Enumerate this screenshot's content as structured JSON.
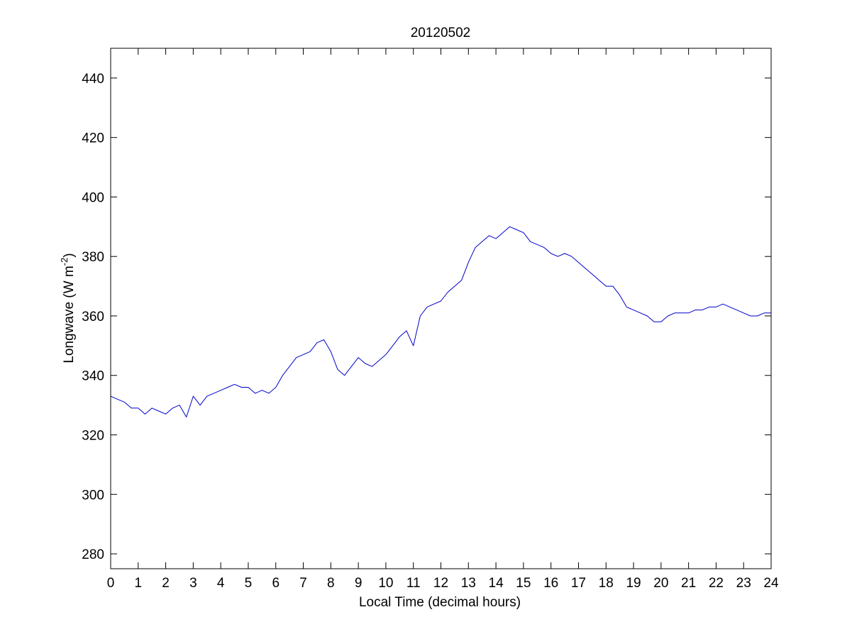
{
  "chart_data": {
    "type": "line",
    "title": "20120502",
    "xlabel": "Local Time (decimal hours)",
    "ylabel": "Longwave (W m",
    "ylabel_sup": "-2",
    "ylabel_end": ")",
    "xlim": [
      0,
      24
    ],
    "ylim": [
      275,
      450
    ],
    "xticks": [
      0,
      1,
      2,
      3,
      4,
      5,
      6,
      7,
      8,
      9,
      10,
      11,
      12,
      13,
      14,
      15,
      16,
      17,
      18,
      19,
      20,
      21,
      22,
      23,
      24
    ],
    "yticks": [
      280,
      300,
      320,
      340,
      360,
      380,
      400,
      420,
      440
    ],
    "grid": false,
    "line_color": "#0000cc",
    "series": [
      {
        "x": [
          0.0,
          0.25,
          0.5,
          0.75,
          1.0,
          1.25,
          1.5,
          1.75,
          2.0,
          2.25,
          2.5,
          2.75,
          3.0,
          3.25,
          3.5,
          3.75,
          4.0,
          4.25,
          4.5,
          4.75,
          5.0,
          5.25,
          5.5,
          5.75,
          6.0,
          6.25,
          6.5,
          6.75,
          7.0,
          7.25,
          7.5,
          7.75,
          8.0,
          8.25,
          8.5,
          8.75,
          9.0,
          9.25,
          9.5,
          9.75,
          10.0,
          10.25,
          10.5,
          10.75,
          11.0,
          11.25,
          11.5,
          11.75,
          12.0,
          12.25,
          12.5,
          12.75,
          13.0,
          13.25,
          13.5,
          13.75,
          14.0,
          14.25,
          14.5,
          14.75,
          15.0,
          15.25,
          15.5,
          15.75,
          16.0,
          16.25,
          16.5,
          16.75,
          17.0,
          17.25,
          17.5,
          17.75,
          18.0,
          18.25,
          18.5,
          18.75,
          19.0,
          19.25,
          19.5,
          19.75,
          20.0,
          20.25,
          20.5,
          20.75,
          21.0,
          21.25,
          21.5,
          21.75,
          22.0,
          22.25,
          22.5,
          22.75,
          23.0,
          23.25,
          23.5,
          23.75,
          24.0
        ],
        "y": [
          333,
          332,
          331,
          329,
          329,
          327,
          329,
          328,
          327,
          329,
          330,
          326,
          333,
          330,
          333,
          334,
          335,
          336,
          337,
          336,
          336,
          334,
          335,
          334,
          336,
          340,
          343,
          346,
          347,
          348,
          351,
          352,
          348,
          342,
          340,
          343,
          346,
          344,
          343,
          345,
          347,
          350,
          353,
          355,
          350,
          360,
          363,
          364,
          365,
          368,
          370,
          372,
          378,
          383,
          385,
          387,
          386,
          388,
          390,
          389,
          388,
          385,
          384,
          383,
          381,
          380,
          381,
          380,
          378,
          376,
          374,
          372,
          370,
          370,
          367,
          363,
          362,
          361,
          360,
          358,
          358,
          360,
          361,
          361,
          361,
          362,
          362,
          363,
          363,
          364,
          363,
          362,
          361,
          360,
          360,
          361,
          361
        ]
      }
    ]
  }
}
